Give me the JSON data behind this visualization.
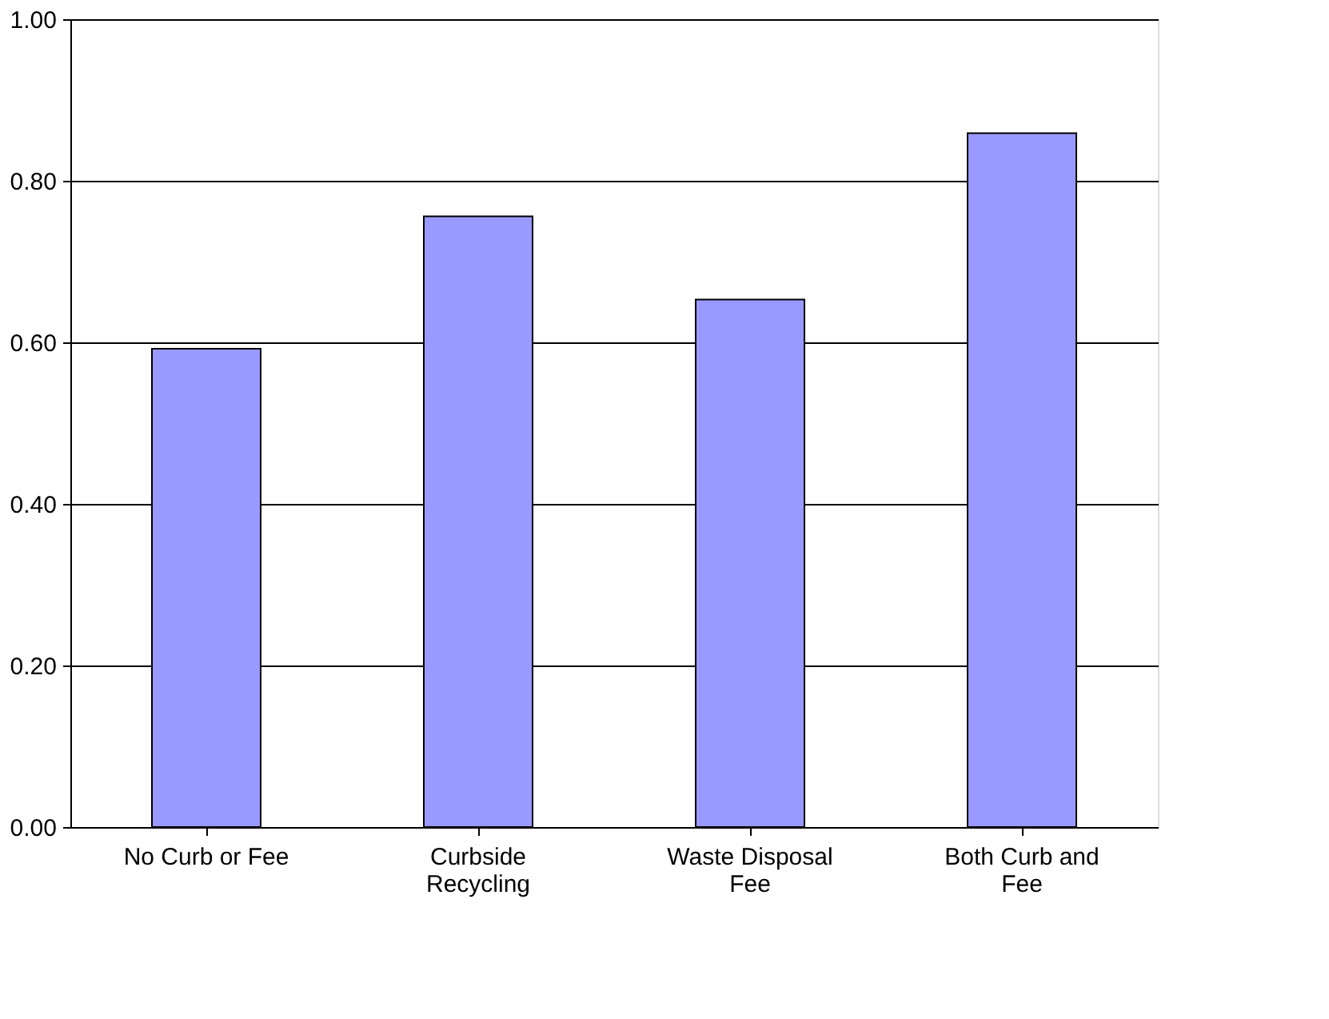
{
  "chart_data": {
    "type": "bar",
    "categories": [
      "No Curb or Fee",
      "Curbside Recycling",
      "Waste Disposal Fee",
      "Both Curb and Fee"
    ],
    "values": [
      0.592,
      0.756,
      0.653,
      0.859
    ],
    "color": "#9999ff",
    "ylim": [
      0,
      1
    ],
    "yticks": [
      {
        "value": 0,
        "label": "0.00"
      },
      {
        "value": 0.2,
        "label": "0.20"
      },
      {
        "value": 0.4,
        "label": "0.40"
      },
      {
        "value": 0.6,
        "label": "0.60"
      },
      {
        "value": 0.8,
        "label": "0.80"
      },
      {
        "value": 1,
        "label": "1.00"
      }
    ],
    "grid": "y"
  }
}
